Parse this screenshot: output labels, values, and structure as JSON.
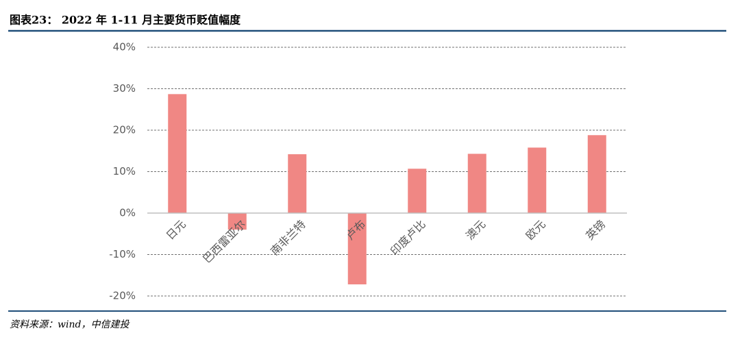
{
  "title": "图表23： 2022 年 1-11 月主要货币贬值幅度",
  "source": "资料来源：wind，中信建投",
  "chart_data": {
    "type": "bar",
    "categories": [
      "日元",
      "巴西雷亚尔",
      "南非兰特",
      "卢布",
      "印度卢比",
      "澳元",
      "欧元",
      "英镑"
    ],
    "values": [
      28.7,
      -4.0,
      14.2,
      -17.2,
      10.7,
      14.3,
      15.8,
      18.8
    ],
    "color": "#f08784",
    "ylim": [
      -20,
      40
    ],
    "yticks": [
      {
        "value": -20,
        "label": "-20%"
      },
      {
        "value": -10,
        "label": "-10%"
      },
      {
        "value": 0,
        "label": "0%"
      },
      {
        "value": 10,
        "label": "10%"
      },
      {
        "value": 20,
        "label": "20%"
      },
      {
        "value": 30,
        "label": "30%"
      },
      {
        "value": 40,
        "label": "40%"
      }
    ],
    "grid": true
  }
}
